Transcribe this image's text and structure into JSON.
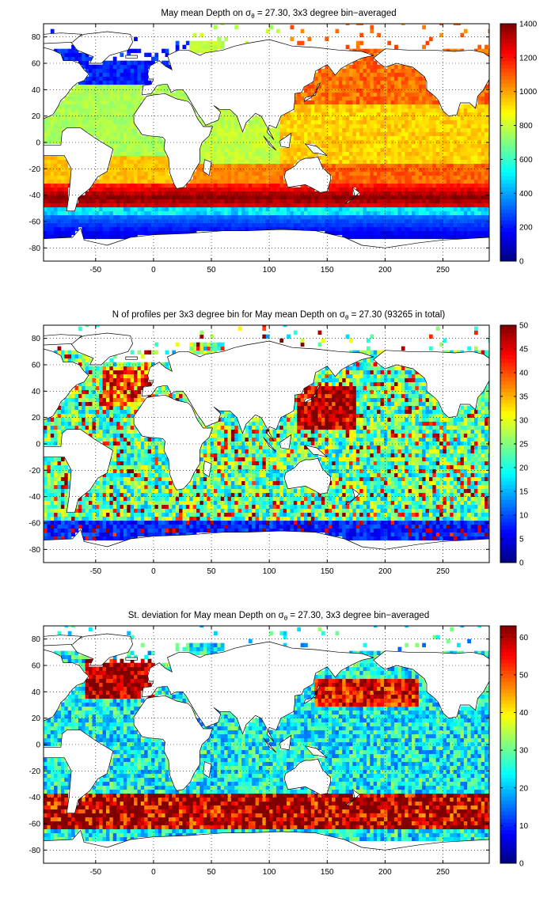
{
  "colors": {
    "land": "#ffffff",
    "coast": "#000000",
    "grid": "#000000",
    "colormap": "jet",
    "colormap_stops": [
      "#00008f",
      "#0000ff",
      "#00ffff",
      "#ffff00",
      "#ff0000",
      "#800000"
    ]
  },
  "chart_data": [
    {
      "type": "heatmap",
      "panel": "mean",
      "title_parts": [
        "May mean Depth on ",
        "σ",
        "θ",
        " = 27.30, 3x3 degree bin−averaged"
      ],
      "xlabel": "",
      "ylabel": "",
      "x_ticks": [
        "-50",
        "0",
        "50",
        "100",
        "150",
        "200",
        "250"
      ],
      "y_ticks": [
        "80",
        "60",
        "40",
        "20",
        "0",
        "-20",
        "-40",
        "-60",
        "-80"
      ],
      "xlim": [
        -95,
        290
      ],
      "ylim": [
        -90,
        90
      ],
      "grid": true,
      "bin_size_deg": 3,
      "colorbar": {
        "min": 0,
        "max": 1400,
        "ticks": [
          "1400",
          "1200",
          "1000",
          "800",
          "600",
          "400",
          "200",
          "0"
        ]
      }
    },
    {
      "type": "heatmap",
      "panel": "count",
      "title_parts": [
        "N of profiles per 3x3 degree bin for May mean Depth on ",
        "σ",
        "θ",
        " = 27.30 (93265 in total)"
      ],
      "xlabel": "",
      "ylabel": "",
      "x_ticks": [
        "-50",
        "0",
        "50",
        "100",
        "150",
        "200",
        "250"
      ],
      "y_ticks": [
        "80",
        "60",
        "40",
        "20",
        "0",
        "-20",
        "-40",
        "-60",
        "-80"
      ],
      "xlim": [
        -95,
        290
      ],
      "ylim": [
        -90,
        90
      ],
      "grid": true,
      "bin_size_deg": 3,
      "colorbar": {
        "min": 0,
        "max": 50,
        "ticks": [
          "50",
          "45",
          "40",
          "35",
          "30",
          "25",
          "20",
          "15",
          "10",
          "5",
          "0"
        ]
      }
    },
    {
      "type": "heatmap",
      "panel": "std",
      "title_parts": [
        "St. deviation for May mean Depth on ",
        "σ",
        "θ",
        " = 27.30, 3x3 degree bin−averaged"
      ],
      "xlabel": "",
      "ylabel": "",
      "x_ticks": [
        "-50",
        "0",
        "50",
        "100",
        "150",
        "200",
        "250"
      ],
      "y_ticks": [
        "80",
        "60",
        "40",
        "20",
        "0",
        "-20",
        "-40",
        "-60",
        "-80"
      ],
      "xlim": [
        -95,
        290
      ],
      "ylim": [
        -90,
        90
      ],
      "grid": true,
      "bin_size_deg": 3,
      "colorbar": {
        "min": 0,
        "max": 63,
        "ticks": [
          "60",
          "50",
          "40",
          "30",
          "20",
          "10",
          "0"
        ]
      }
    }
  ]
}
